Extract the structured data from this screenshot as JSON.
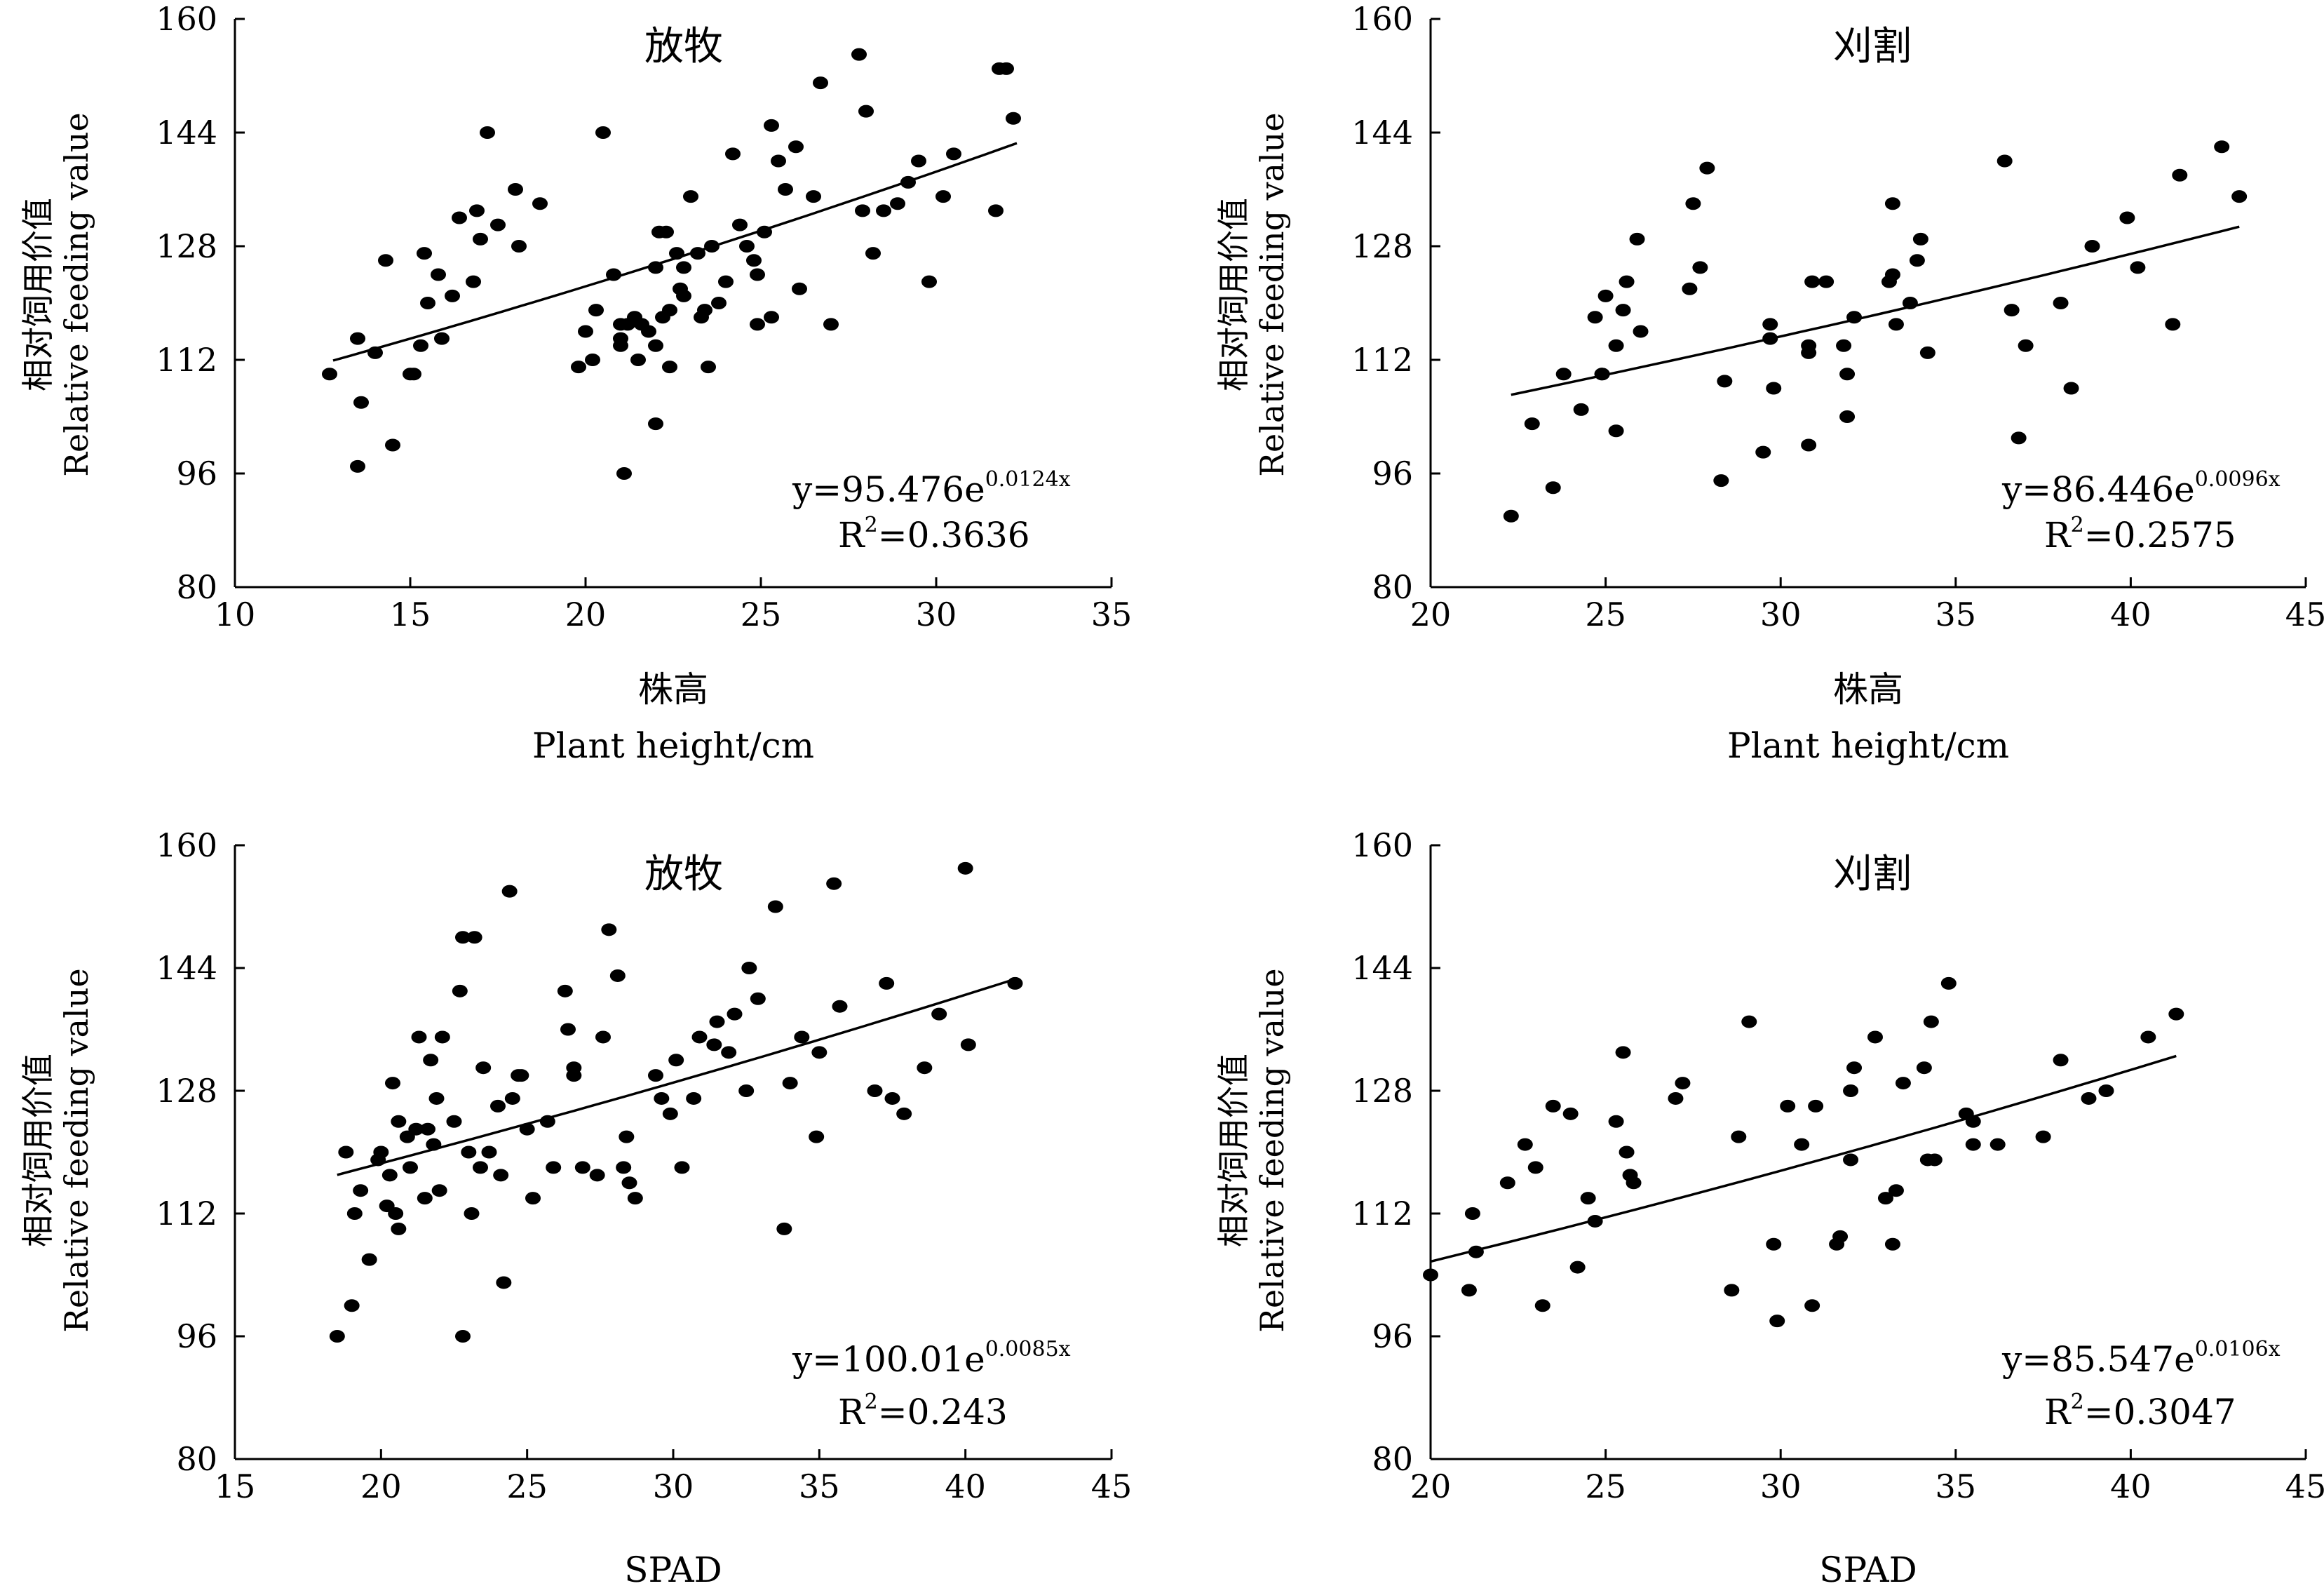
{
  "chart_data": [
    {
      "type": "scatter",
      "title": "放牧",
      "ylabel_cn": "相对饲用价值",
      "ylabel_en": "Relative feeding value",
      "xlabel_cn": "株高",
      "xlabel_en": "Plant height/cm",
      "xlim": [
        10,
        35
      ],
      "ylim": [
        80,
        160
      ],
      "xticks": [
        "10",
        "15",
        "20",
        "25",
        "30",
        "35"
      ],
      "yticks": [
        "80",
        "96",
        "112",
        "128",
        "144",
        "160"
      ],
      "equation": {
        "prefix": "y=95.476e",
        "exp": "0.0124x"
      },
      "r2": {
        "label": "R",
        "sup": "2",
        "value": "=0.3636"
      },
      "fit": {
        "a": 95.476,
        "b": 0.0124,
        "x_range": [
          12.8,
          32.3
        ]
      },
      "points": [
        [
          12.7,
          110
        ],
        [
          13.5,
          97
        ],
        [
          13.6,
          106
        ],
        [
          13.5,
          115
        ],
        [
          14.0,
          113
        ],
        [
          14.3,
          126
        ],
        [
          14.5,
          100
        ],
        [
          15.0,
          110
        ],
        [
          15.1,
          110
        ],
        [
          15.3,
          114
        ],
        [
          15.4,
          127
        ],
        [
          15.5,
          120
        ],
        [
          15.8,
          124
        ],
        [
          15.9,
          115
        ],
        [
          16.2,
          121
        ],
        [
          16.4,
          132
        ],
        [
          16.8,
          123
        ],
        [
          16.9,
          133
        ],
        [
          17.0,
          129
        ],
        [
          17.2,
          144
        ],
        [
          17.5,
          131
        ],
        [
          18.0,
          136
        ],
        [
          18.1,
          128
        ],
        [
          18.7,
          134
        ],
        [
          20.0,
          116
        ],
        [
          20.3,
          119
        ],
        [
          20.5,
          144
        ],
        [
          20.8,
          124
        ],
        [
          21.0,
          117
        ],
        [
          21.2,
          117
        ],
        [
          21.4,
          118
        ],
        [
          21.6,
          117
        ],
        [
          21.8,
          116
        ],
        [
          22.0,
          125
        ],
        [
          22.0,
          114
        ],
        [
          22.1,
          130
        ],
        [
          22.3,
          130
        ],
        [
          22.4,
          119
        ],
        [
          22.6,
          127
        ],
        [
          22.7,
          122
        ],
        [
          22.8,
          125
        ],
        [
          23.0,
          135
        ],
        [
          23.2,
          127
        ],
        [
          23.4,
          119
        ],
        [
          23.6,
          128
        ],
        [
          23.8,
          120
        ],
        [
          24.0,
          123
        ],
        [
          24.2,
          141
        ],
        [
          24.4,
          131
        ],
        [
          24.6,
          128
        ],
        [
          24.8,
          126
        ],
        [
          24.9,
          124
        ],
        [
          25.1,
          130
        ],
        [
          25.3,
          145
        ],
        [
          25.5,
          140
        ],
        [
          25.7,
          136
        ],
        [
          26.0,
          142
        ],
        [
          26.5,
          135
        ],
        [
          26.7,
          151
        ],
        [
          27.0,
          117
        ],
        [
          27.8,
          155
        ],
        [
          27.9,
          133
        ],
        [
          28.0,
          147
        ],
        [
          28.2,
          127
        ],
        [
          28.5,
          133
        ],
        [
          28.9,
          134
        ],
        [
          29.2,
          137
        ],
        [
          29.5,
          140
        ],
        [
          29.8,
          123
        ],
        [
          30.2,
          135
        ],
        [
          30.5,
          141
        ],
        [
          31.7,
          133
        ],
        [
          31.8,
          153
        ],
        [
          32.0,
          153
        ],
        [
          32.2,
          146
        ],
        [
          19.8,
          111
        ],
        [
          20.2,
          112
        ],
        [
          21.0,
          114
        ],
        [
          21.5,
          112
        ],
        [
          21.1,
          96
        ],
        [
          22.0,
          103
        ],
        [
          22.4,
          111
        ],
        [
          23.5,
          111
        ],
        [
          24.9,
          117
        ],
        [
          22.8,
          121
        ],
        [
          23.3,
          118
        ],
        [
          26.1,
          122
        ],
        [
          25.3,
          118
        ],
        [
          21.0,
          115
        ],
        [
          22.2,
          118
        ]
      ]
    },
    {
      "type": "scatter",
      "title": "刈割",
      "ylabel_cn": "相对饲用价值",
      "ylabel_en": "Relative feeding value",
      "xlabel_cn": "株高",
      "xlabel_en": "Plant height/cm",
      "xlim": [
        20,
        45
      ],
      "ylim": [
        80,
        160
      ],
      "xticks": [
        "20",
        "25",
        "30",
        "35",
        "40",
        "45"
      ],
      "yticks": [
        "80",
        "96",
        "112",
        "128",
        "144",
        "160"
      ],
      "equation": {
        "prefix": "y=86.446e",
        "exp": "0.0096x"
      },
      "r2": {
        "label": "R",
        "sup": "2",
        "value": "=0.2575"
      },
      "fit": {
        "a": 86.446,
        "b": 0.0096,
        "x_range": [
          22.3,
          43.1
        ]
      },
      "points": [
        [
          22.3,
          90
        ],
        [
          22.9,
          103
        ],
        [
          23.5,
          94
        ],
        [
          23.8,
          110
        ],
        [
          24.3,
          105
        ],
        [
          24.7,
          118
        ],
        [
          24.9,
          110
        ],
        [
          25.0,
          121
        ],
        [
          25.3,
          114
        ],
        [
          25.5,
          119
        ],
        [
          25.6,
          123
        ],
        [
          25.9,
          129
        ],
        [
          26.0,
          116
        ],
        [
          27.4,
          122
        ],
        [
          27.5,
          134
        ],
        [
          27.7,
          125
        ],
        [
          27.9,
          139
        ],
        [
          28.3,
          95
        ],
        [
          28.4,
          109
        ],
        [
          29.5,
          99
        ],
        [
          29.7,
          117
        ],
        [
          29.7,
          115
        ],
        [
          29.8,
          108
        ],
        [
          30.8,
          100
        ],
        [
          30.8,
          113
        ],
        [
          30.9,
          123
        ],
        [
          31.3,
          123
        ],
        [
          31.8,
          114
        ],
        [
          31.9,
          110
        ],
        [
          32.1,
          118
        ],
        [
          33.1,
          123
        ],
        [
          33.2,
          134
        ],
        [
          33.3,
          117
        ],
        [
          33.7,
          120
        ],
        [
          33.9,
          126
        ],
        [
          34.0,
          129
        ],
        [
          34.2,
          113
        ],
        [
          25.3,
          102
        ],
        [
          24.9,
          110
        ],
        [
          36.4,
          140
        ],
        [
          36.6,
          119
        ],
        [
          36.8,
          101
        ],
        [
          37.0,
          114
        ],
        [
          38.0,
          120
        ],
        [
          38.3,
          108
        ],
        [
          38.9,
          128
        ],
        [
          39.9,
          132
        ],
        [
          40.2,
          125
        ],
        [
          41.2,
          117
        ],
        [
          41.4,
          138
        ],
        [
          42.6,
          142
        ],
        [
          43.1,
          135
        ],
        [
          30.8,
          114
        ],
        [
          31.9,
          104
        ],
        [
          33.2,
          124
        ]
      ]
    },
    {
      "type": "scatter",
      "title": "放牧",
      "ylabel_cn": "相对饲用价值",
      "ylabel_en": "Relative feeding value",
      "xlabel_cn": "",
      "xlabel_en": "SPAD",
      "xlim": [
        15,
        45
      ],
      "ylim": [
        80,
        160
      ],
      "xticks": [
        "15",
        "20",
        "25",
        "30",
        "35",
        "40",
        "45"
      ],
      "yticks": [
        "80",
        "96",
        "112",
        "128",
        "144",
        "160"
      ],
      "equation": {
        "prefix": "y=100.01e",
        "exp": "0.0085x"
      },
      "r2": {
        "label": "R",
        "sup": "2",
        "value": "=0.243"
      },
      "fit": {
        "a": 100.01,
        "b": 0.0085,
        "x_range": [
          18.5,
          41.7
        ]
      },
      "points": [
        [
          18.5,
          96
        ],
        [
          18.8,
          120
        ],
        [
          19.0,
          100
        ],
        [
          19.1,
          112
        ],
        [
          19.3,
          115
        ],
        [
          19.6,
          106
        ],
        [
          19.9,
          119
        ],
        [
          20.0,
          120
        ],
        [
          20.2,
          113
        ],
        [
          20.3,
          117
        ],
        [
          20.4,
          129
        ],
        [
          20.5,
          112
        ],
        [
          20.6,
          110
        ],
        [
          20.6,
          124
        ],
        [
          20.9,
          122
        ],
        [
          21.0,
          118
        ],
        [
          21.2,
          123
        ],
        [
          21.3,
          135
        ],
        [
          21.5,
          114
        ],
        [
          21.6,
          123
        ],
        [
          21.7,
          132
        ],
        [
          21.8,
          121
        ],
        [
          21.9,
          127
        ],
        [
          22.0,
          115
        ],
        [
          22.1,
          135
        ],
        [
          22.5,
          124
        ],
        [
          22.7,
          141
        ],
        [
          22.8,
          148
        ],
        [
          23.0,
          120
        ],
        [
          23.2,
          148
        ],
        [
          23.4,
          118
        ],
        [
          23.5,
          131
        ],
        [
          23.7,
          120
        ],
        [
          24.0,
          126
        ],
        [
          24.2,
          103
        ],
        [
          24.4,
          154
        ],
        [
          24.5,
          127
        ],
        [
          24.7,
          130
        ],
        [
          24.8,
          130
        ],
        [
          25.0,
          123
        ],
        [
          25.2,
          114
        ],
        [
          25.7,
          124
        ],
        [
          25.9,
          118
        ],
        [
          26.3,
          141
        ],
        [
          26.4,
          136
        ],
        [
          26.6,
          131
        ],
        [
          26.6,
          130
        ],
        [
          27.4,
          117
        ],
        [
          27.6,
          135
        ],
        [
          27.8,
          149
        ],
        [
          28.1,
          143
        ],
        [
          28.3,
          118
        ],
        [
          28.4,
          122
        ],
        [
          28.5,
          116
        ],
        [
          28.7,
          114
        ],
        [
          29.4,
          130
        ],
        [
          29.6,
          127
        ],
        [
          29.9,
          125
        ],
        [
          30.1,
          132
        ],
        [
          30.3,
          118
        ],
        [
          30.7,
          127
        ],
        [
          30.9,
          135
        ],
        [
          31.4,
          134
        ],
        [
          31.5,
          137
        ],
        [
          31.9,
          133
        ],
        [
          32.1,
          138
        ],
        [
          32.5,
          128
        ],
        [
          32.6,
          144
        ],
        [
          32.9,
          140
        ],
        [
          33.5,
          152
        ],
        [
          33.8,
          110
        ],
        [
          34.0,
          129
        ],
        [
          34.4,
          135
        ],
        [
          34.9,
          122
        ],
        [
          35.0,
          133
        ],
        [
          35.5,
          155
        ],
        [
          35.7,
          139
        ],
        [
          36.9,
          128
        ],
        [
          37.3,
          142
        ],
        [
          37.5,
          127
        ],
        [
          37.9,
          125
        ],
        [
          38.6,
          131
        ],
        [
          39.1,
          138
        ],
        [
          40.0,
          157
        ],
        [
          40.1,
          134
        ],
        [
          41.7,
          142
        ],
        [
          22.8,
          96
        ],
        [
          23.1,
          112
        ],
        [
          24.1,
          117
        ],
        [
          26.9,
          118
        ]
      ]
    },
    {
      "type": "scatter",
      "title": "刈割",
      "ylabel_cn": "相对饲用价值",
      "ylabel_en": "Relative feeding value",
      "xlabel_cn": "",
      "xlabel_en": "SPAD",
      "xlim": [
        20,
        45
      ],
      "ylim": [
        80,
        160
      ],
      "xticks": [
        "20",
        "25",
        "30",
        "35",
        "40",
        "45"
      ],
      "yticks": [
        "80",
        "96",
        "112",
        "128",
        "144",
        "160"
      ],
      "equation": {
        "prefix": "y=85.547e",
        "exp": "0.0106x"
      },
      "r2": {
        "label": "R",
        "sup": "2",
        "value": "=0.3047"
      },
      "fit": {
        "a": 85.547,
        "b": 0.0106,
        "x_range": [
          20.0,
          41.3
        ]
      },
      "points": [
        [
          20.0,
          104
        ],
        [
          21.1,
          102
        ],
        [
          21.2,
          112
        ],
        [
          21.3,
          107
        ],
        [
          22.2,
          116
        ],
        [
          22.7,
          121
        ],
        [
          23.0,
          118
        ],
        [
          23.2,
          100
        ],
        [
          23.5,
          126
        ],
        [
          24.0,
          125
        ],
        [
          24.2,
          105
        ],
        [
          24.5,
          114
        ],
        [
          24.7,
          111
        ],
        [
          25.3,
          124
        ],
        [
          25.5,
          133
        ],
        [
          25.6,
          120
        ],
        [
          25.7,
          117
        ],
        [
          25.8,
          116
        ],
        [
          27.0,
          127
        ],
        [
          27.2,
          129
        ],
        [
          28.6,
          102
        ],
        [
          28.8,
          122
        ],
        [
          29.1,
          137
        ],
        [
          29.8,
          108
        ],
        [
          29.9,
          98
        ],
        [
          30.2,
          126
        ],
        [
          30.6,
          121
        ],
        [
          30.9,
          100
        ],
        [
          31.0,
          126
        ],
        [
          31.6,
          108
        ],
        [
          31.7,
          109
        ],
        [
          32.0,
          128
        ],
        [
          32.0,
          119
        ],
        [
          32.1,
          131
        ],
        [
          33.0,
          114
        ],
        [
          33.2,
          108
        ],
        [
          33.3,
          115
        ],
        [
          33.5,
          129
        ],
        [
          34.1,
          131
        ],
        [
          34.2,
          119
        ],
        [
          34.4,
          119
        ],
        [
          34.8,
          142
        ],
        [
          35.3,
          125
        ],
        [
          35.5,
          124
        ],
        [
          36.2,
          121
        ],
        [
          37.5,
          122
        ],
        [
          38.0,
          132
        ],
        [
          38.8,
          127
        ],
        [
          39.3,
          128
        ],
        [
          40.5,
          135
        ],
        [
          41.3,
          138
        ],
        [
          34.3,
          137
        ],
        [
          35.5,
          121
        ],
        [
          32.7,
          135
        ]
      ]
    }
  ]
}
